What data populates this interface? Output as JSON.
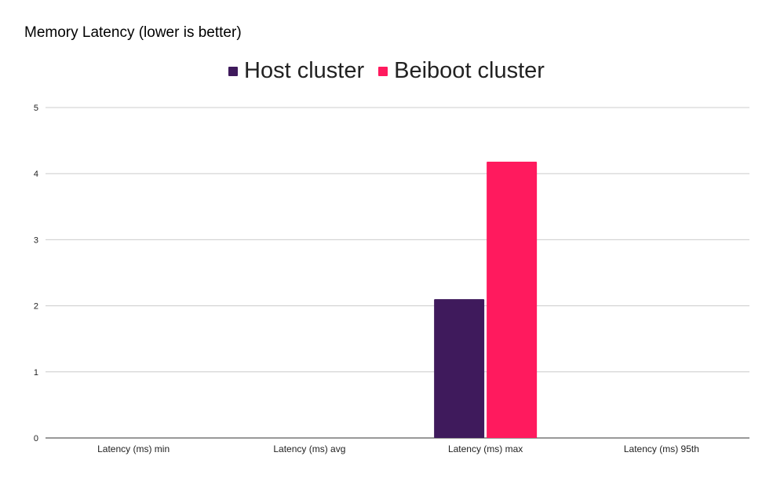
{
  "chart_data": {
    "type": "bar",
    "title": "Memory Latency (lower is better)",
    "categories": [
      "Latency (ms) min",
      "Latency (ms) avg",
      "Latency (ms) max",
      "Latency (ms) 95th"
    ],
    "series": [
      {
        "name": "Host cluster",
        "color": "#3f1a5c",
        "values": [
          0,
          0,
          2.1,
          0
        ]
      },
      {
        "name": "Beiboot cluster",
        "color": "#ff1a5e",
        "values": [
          0,
          0,
          4.18,
          0
        ]
      }
    ],
    "ylim": [
      0,
      5
    ],
    "yticks": [
      0,
      1,
      2,
      3,
      4,
      5
    ],
    "grid": true,
    "legend_position": "top-center",
    "xlabel": "",
    "ylabel": ""
  }
}
